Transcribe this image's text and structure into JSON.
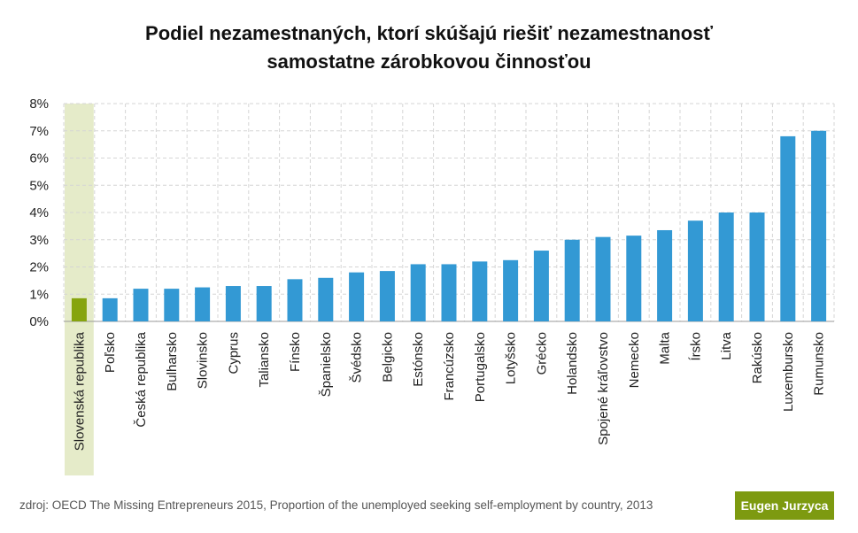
{
  "chart_data": {
    "type": "bar",
    "title_line1": "Podiel nezamestnaných, ktorí skúšajú riešiť nezamestnanosť",
    "title_line2": "samostatne zárobkovou činnosťou",
    "categories": [
      "Slovenská republika",
      "Poľsko",
      "Česká republika",
      "Bulharsko",
      "Slovinsko",
      "Cyprus",
      "Taliansko",
      "Fínsko",
      "Španielsko",
      "Švédsko",
      "Belgicko",
      "Estónsko",
      "Francúzsko",
      "Portugalsko",
      "Lotyšsko",
      "Grécko",
      "Holandsko",
      "Spojené kráľovstvo",
      "Nemecko",
      "Malta",
      "Írsko",
      "Litva",
      "Rakúsko",
      "Luxembursko",
      "Rumunsko"
    ],
    "values": [
      0.85,
      0.85,
      1.2,
      1.2,
      1.25,
      1.3,
      1.3,
      1.55,
      1.6,
      1.8,
      1.85,
      2.1,
      2.1,
      2.2,
      2.25,
      2.6,
      3.0,
      3.1,
      3.15,
      3.35,
      3.7,
      4.0,
      4.0,
      6.8,
      7.0
    ],
    "highlight_category": "Slovenská republika",
    "ylim": [
      0,
      8
    ],
    "yticks": [
      "0%",
      "1%",
      "2%",
      "3%",
      "4%",
      "5%",
      "6%",
      "7%",
      "8%"
    ],
    "grid": true,
    "xlabel": "",
    "ylabel": ""
  },
  "colors": {
    "bar": "#3399d4",
    "highlight_bar": "#86a40e",
    "highlight_band": "#e5ebc9",
    "grid": "#d5d5d5"
  },
  "footer": {
    "source": "zdroj: OECD The Missing Entrepreneurs 2015, Proportion of the unemployed seeking self-employment by country, 2013",
    "author": "Eugen Jurzyca"
  }
}
